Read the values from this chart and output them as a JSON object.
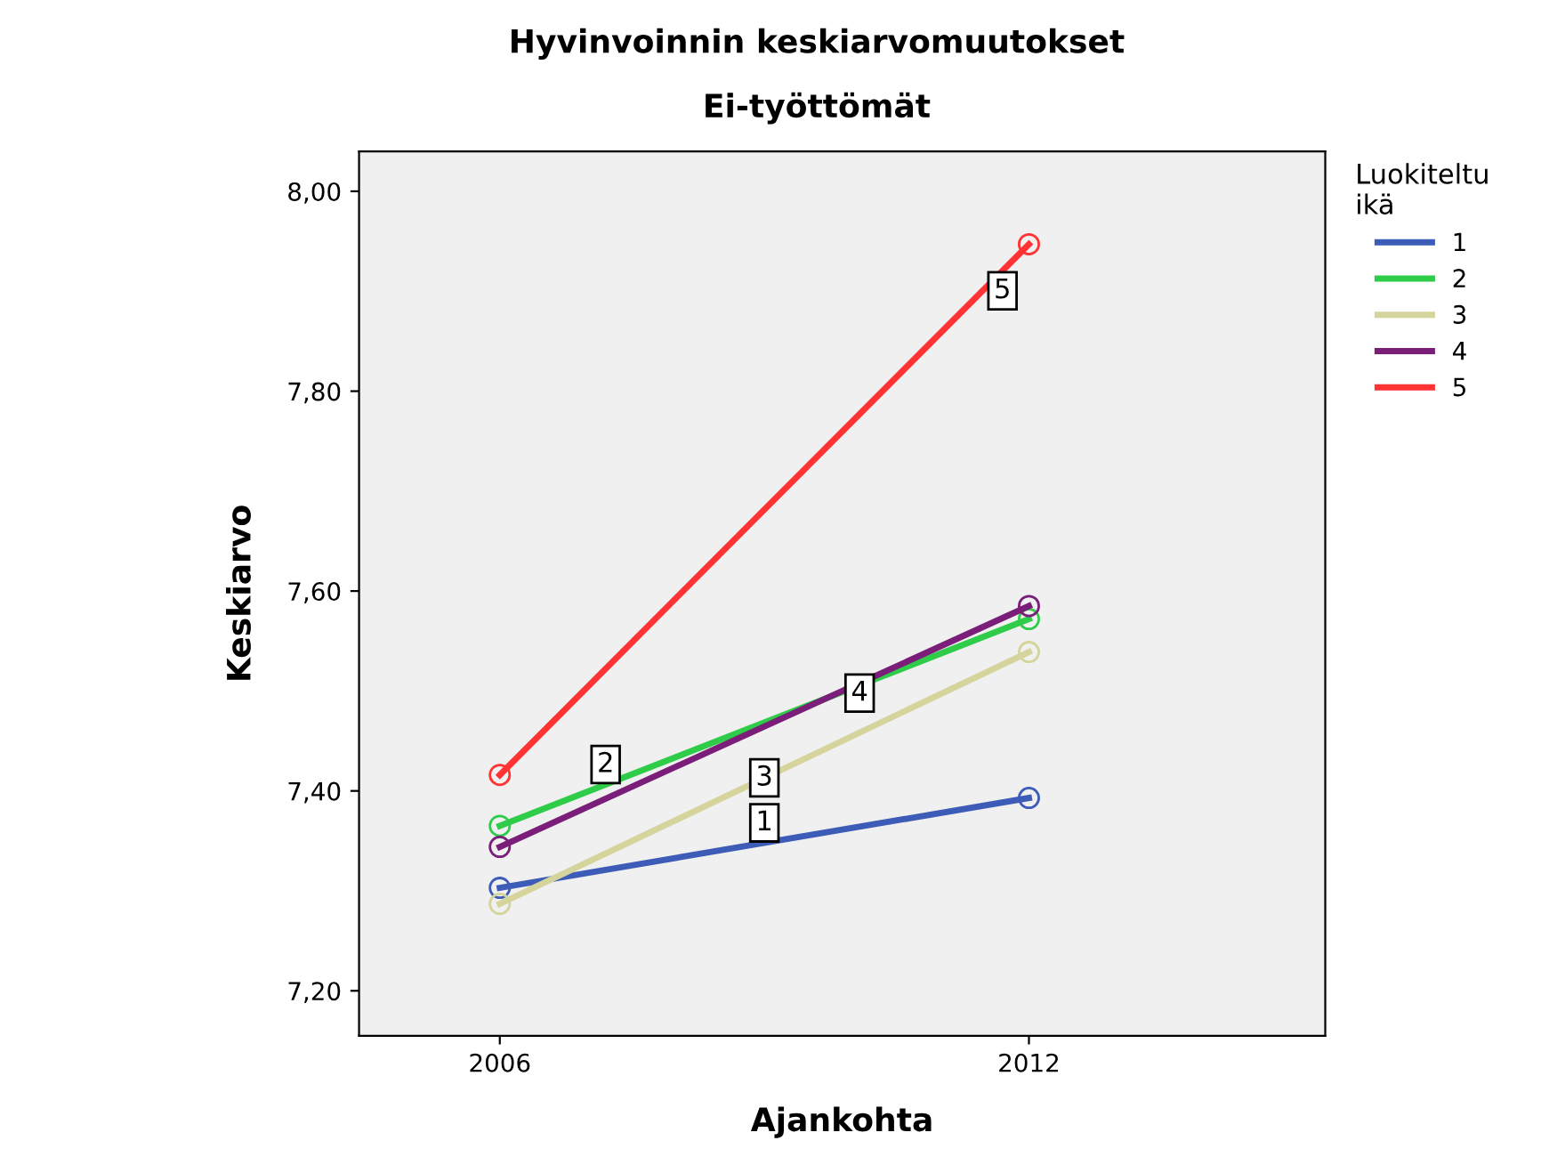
{
  "chart_data": {
    "type": "line",
    "title": "Hyvinvoinnin keskiarvomuutokset",
    "subtitle": "Ei-työttömät",
    "xlabel": "Ajankohta",
    "ylabel": "Keskiarvo",
    "legend_title": "Luokiteltu\nikä",
    "categories": [
      "2006",
      "2012"
    ],
    "series": [
      {
        "name": "1",
        "color": "#3d5cb8",
        "values": [
          7.303,
          7.393
        ]
      },
      {
        "name": "2",
        "color": "#2ecc48",
        "values": [
          7.365,
          7.572
        ]
      },
      {
        "name": "3",
        "color": "#d4d49c",
        "values": [
          7.287,
          7.539
        ]
      },
      {
        "name": "4",
        "color": "#7a1e7a",
        "values": [
          7.344,
          7.585
        ]
      },
      {
        "name": "5",
        "color": "#ff3333",
        "values": [
          7.416,
          7.947
        ]
      }
    ],
    "ylim": [
      7.155,
      8.04
    ],
    "yticks": [
      {
        "value": 7.2,
        "label": "7,20"
      },
      {
        "value": 7.4,
        "label": "7,40"
      },
      {
        "value": 7.6,
        "label": "7,60"
      },
      {
        "value": 7.8,
        "label": "7,80"
      },
      {
        "value": 8.0,
        "label": "8,00"
      }
    ],
    "marker": "circle",
    "line_style": "solid",
    "legend": "top right",
    "grid": false
  }
}
